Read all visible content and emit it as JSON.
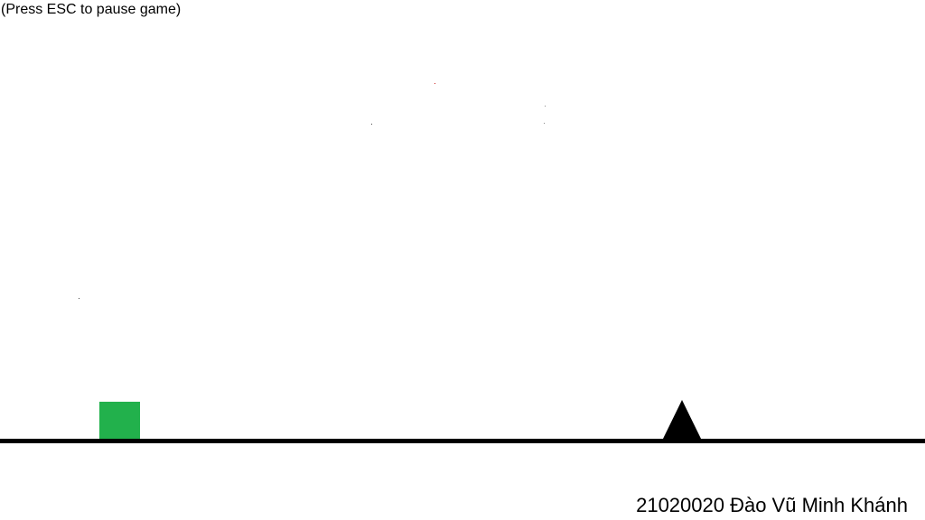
{
  "hud": {
    "pause_hint": "(Press ESC to pause game)",
    "credit": "21020020 Đào Vũ Minh Khánh"
  },
  "colors": {
    "background": "#ffffff",
    "ground": "#000000",
    "player": "#22b14c",
    "obstacle": "#000000",
    "particle_red": "#cc2222",
    "particle_dark": "#444444"
  },
  "entities": {
    "player": "green square",
    "obstacle": "black spike"
  }
}
